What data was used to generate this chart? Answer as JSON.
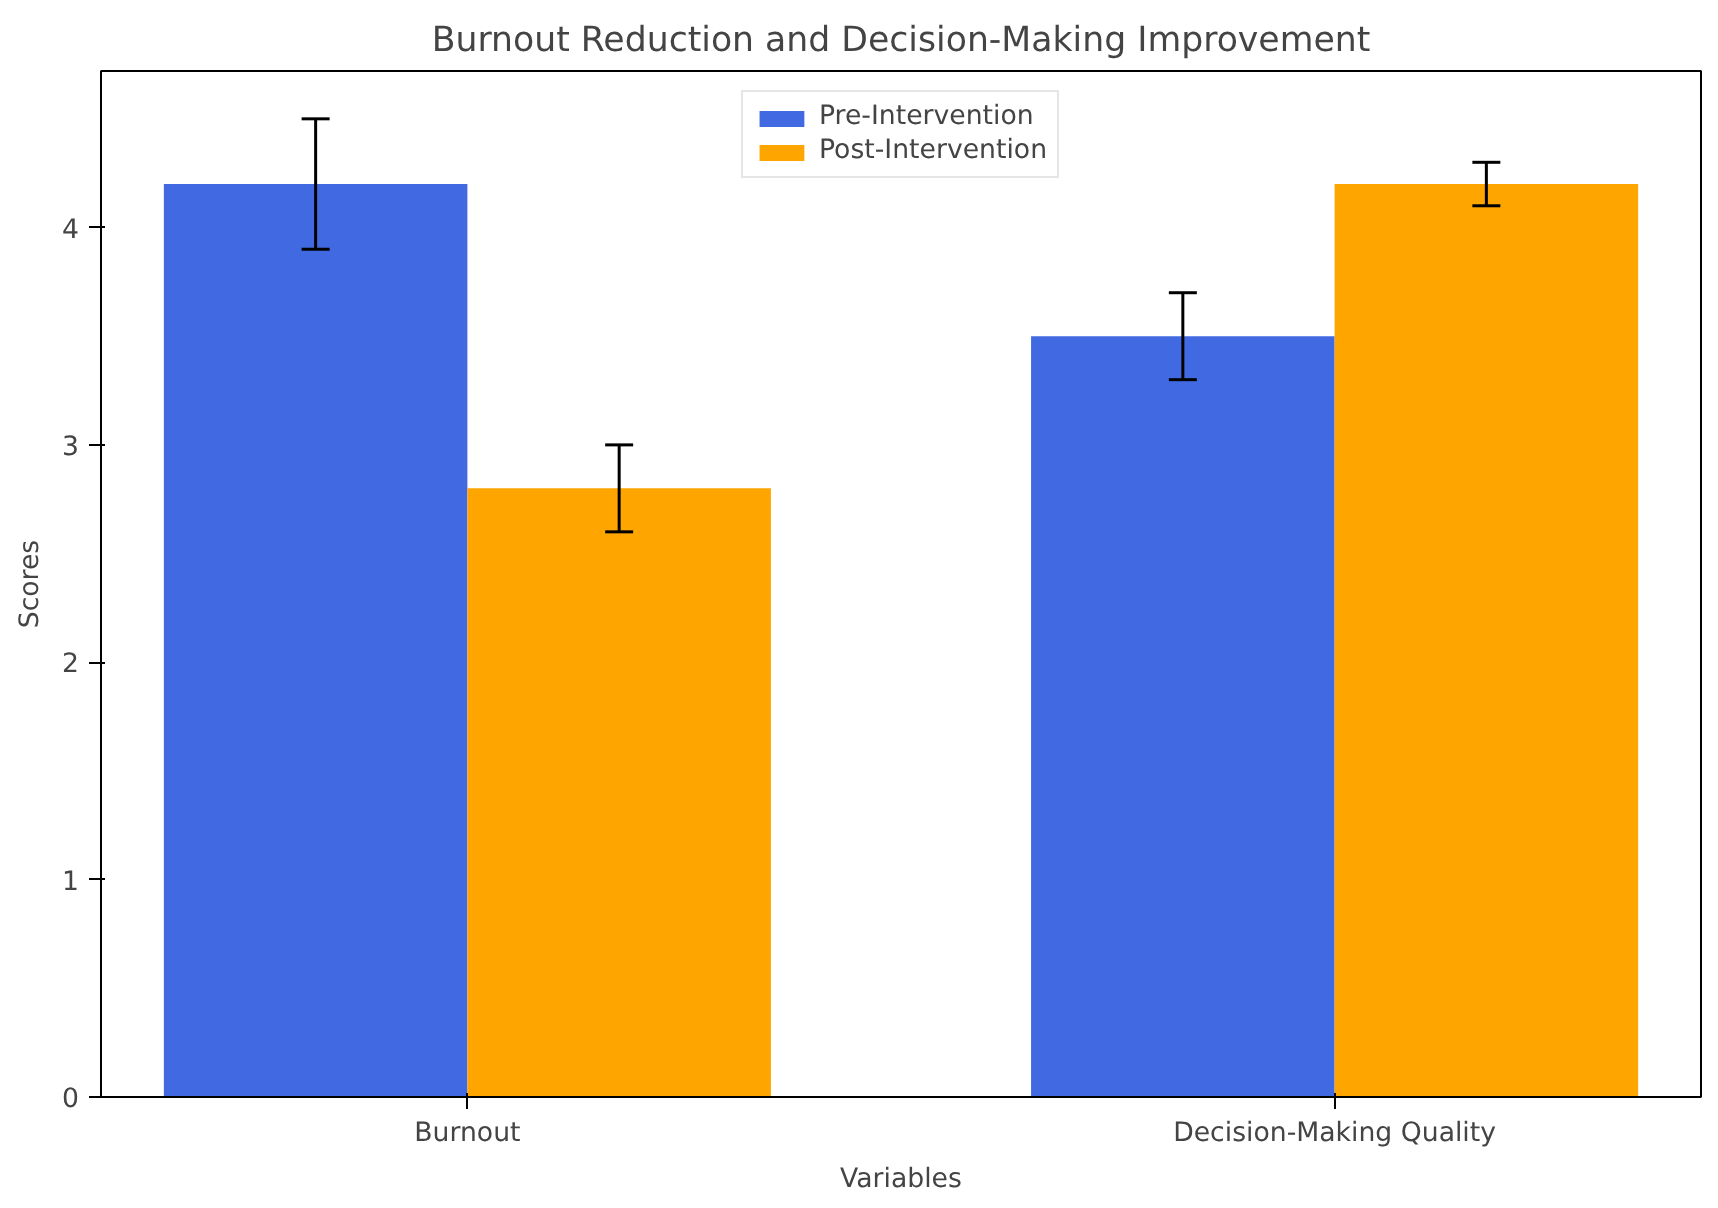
{
  "chart_data": {
    "type": "bar",
    "title": "Burnout Reduction and Decision-Making Improvement",
    "xlabel": "Variables",
    "ylabel": "Scores",
    "categories": [
      "Burnout",
      "Decision-Making Quality"
    ],
    "series": [
      {
        "name": "Pre-Intervention",
        "color": "#4169e1",
        "values": [
          4.2,
          3.5
        ],
        "errors": [
          0.3,
          0.2
        ]
      },
      {
        "name": "Post-Intervention",
        "color": "#ffa500",
        "values": [
          2.8,
          4.2
        ],
        "errors": [
          0.2,
          0.1
        ]
      }
    ],
    "ylim": [
      0,
      4.72
    ],
    "yticks": [
      0,
      1,
      2,
      3,
      4
    ],
    "legend": "top"
  }
}
